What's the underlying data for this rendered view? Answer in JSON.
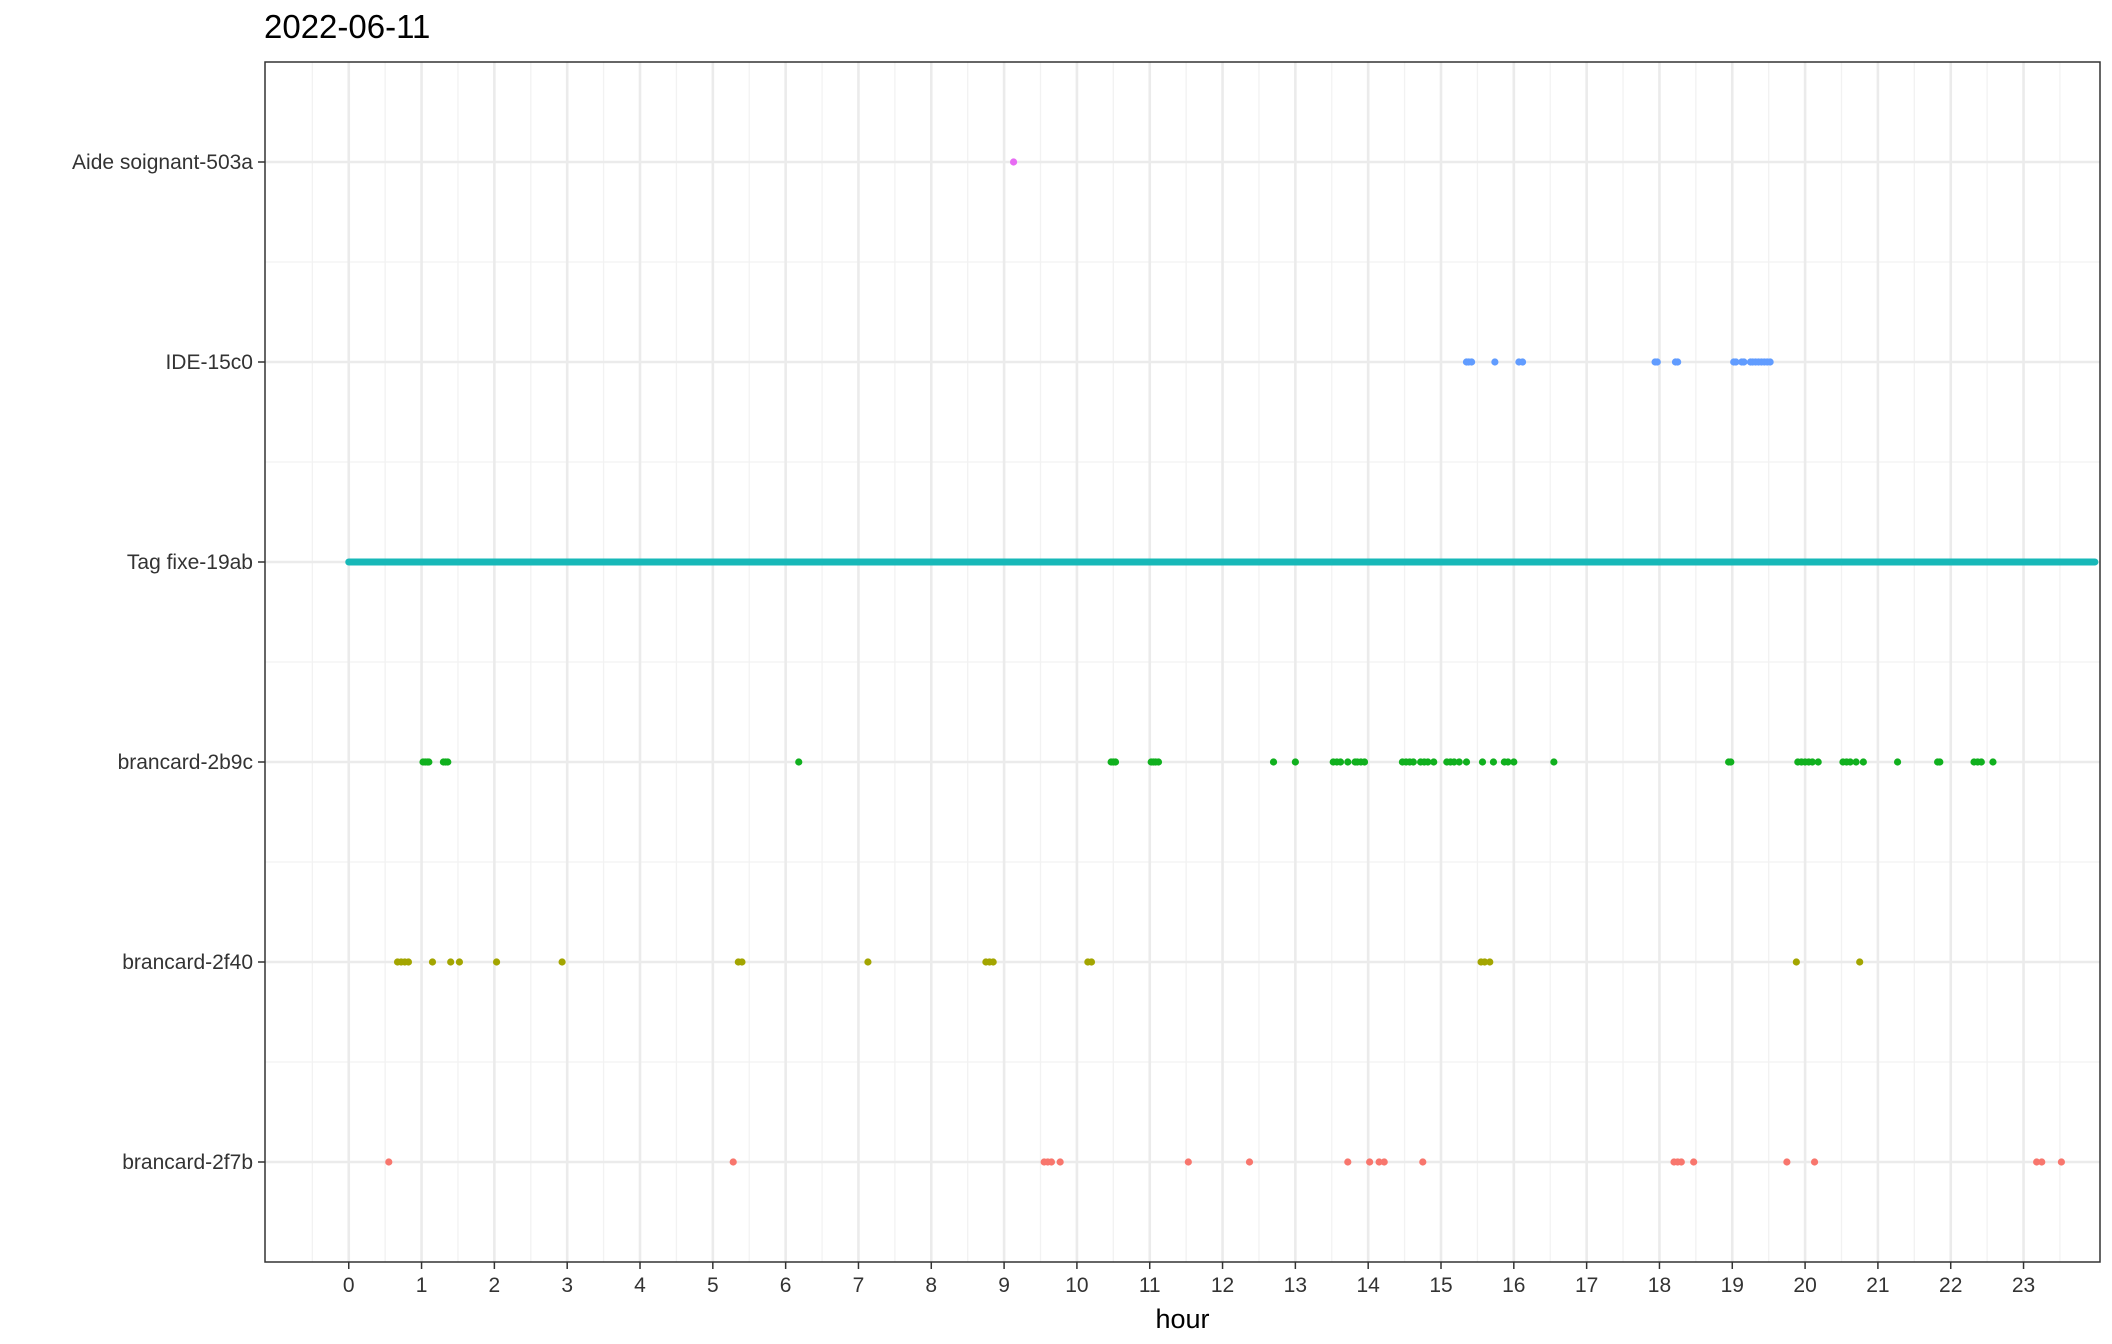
{
  "chart_data": {
    "type": "scatter",
    "title": "2022-06-11",
    "xlabel": "hour",
    "ylabel": "",
    "xlim": [
      -1.15,
      24.05
    ],
    "x_ticks": [
      0,
      1,
      2,
      3,
      4,
      5,
      6,
      7,
      8,
      9,
      10,
      11,
      12,
      13,
      14,
      15,
      16,
      17,
      18,
      19,
      20,
      21,
      22,
      23
    ],
    "categories": [
      "Aide soignant-503a",
      "IDE-15c0",
      "Tag fixe-19ab",
      "brancard-2b9c",
      "brancard-2f40",
      "brancard-2f7b"
    ],
    "grid": true,
    "legend": "none",
    "series": [
      {
        "name": "Aide soignant-503a",
        "color": "#E76BF3",
        "continuous": false,
        "x": [
          9.13
        ]
      },
      {
        "name": "IDE-15c0",
        "color": "#619CFF",
        "continuous": false,
        "x": [
          15.35,
          15.38,
          15.42,
          15.74,
          16.07,
          16.12,
          17.94,
          17.97,
          18.22,
          18.25,
          19.02,
          19.05,
          19.13,
          19.16,
          19.25,
          19.28,
          19.32,
          19.36,
          19.4,
          19.44,
          19.48,
          19.52
        ]
      },
      {
        "name": "Tag fixe-19ab",
        "color": "#17B8B8",
        "continuous": true,
        "x": [
          0.0,
          23.98
        ]
      },
      {
        "name": "brancard-2b9c",
        "color": "#10B01E",
        "continuous": false,
        "x": [
          1.02,
          1.05,
          1.08,
          1.1,
          1.3,
          1.33,
          1.36,
          6.18,
          10.47,
          10.5,
          10.53,
          11.02,
          11.05,
          11.08,
          11.12,
          12.7,
          13.0,
          13.52,
          13.57,
          13.62,
          13.72,
          13.82,
          13.85,
          13.9,
          13.95,
          14.47,
          14.52,
          14.57,
          14.62,
          14.72,
          14.77,
          14.82,
          14.9,
          15.08,
          15.13,
          15.18,
          15.25,
          15.35,
          15.57,
          15.72,
          15.87,
          15.92,
          16.0,
          16.55,
          18.95,
          18.98,
          19.9,
          19.95,
          20.0,
          20.05,
          20.1,
          20.18,
          20.52,
          20.57,
          20.62,
          20.7,
          20.8,
          21.27,
          21.82,
          21.85,
          22.32,
          22.37,
          22.42,
          22.58
        ],
        "y_offset_note": ""
      },
      {
        "name": "brancard-2f40",
        "color": "#A3A500",
        "continuous": false,
        "x": [
          0.67,
          0.72,
          0.77,
          0.82,
          1.15,
          1.4,
          1.52,
          2.03,
          2.93,
          5.35,
          5.4,
          7.13,
          8.75,
          8.8,
          8.85,
          10.15,
          10.2,
          15.55,
          15.6,
          15.67,
          19.88,
          20.75
        ]
      },
      {
        "name": "brancard-2f7b",
        "color": "#F8766D",
        "continuous": false,
        "x": [
          0.55,
          5.28,
          9.55,
          9.6,
          9.65,
          9.77,
          11.53,
          12.37,
          13.72,
          14.02,
          14.15,
          14.22,
          14.75,
          18.2,
          18.25,
          18.3,
          18.47,
          19.75,
          20.13,
          23.18,
          23.25,
          23.52
        ]
      }
    ]
  }
}
